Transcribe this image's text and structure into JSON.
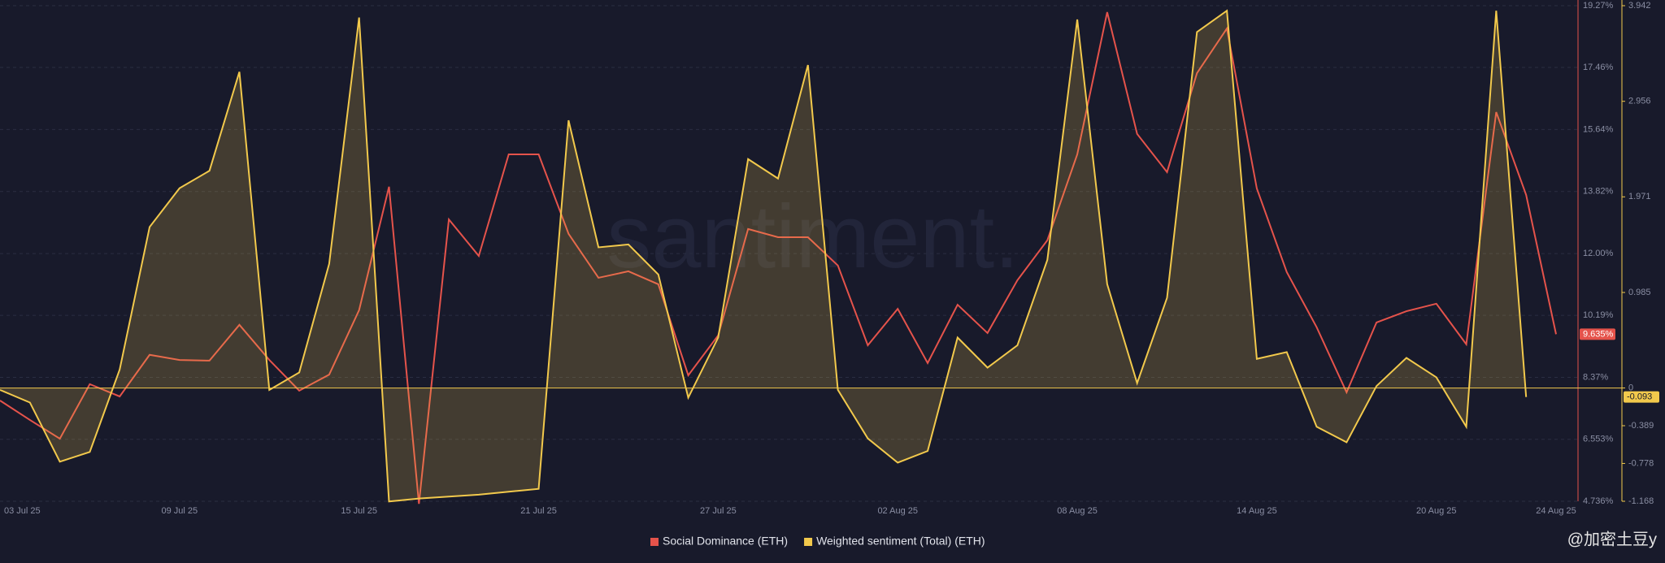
{
  "chart_data": {
    "type": "line",
    "watermark": "santiment.",
    "source_label": "@加密土豆y",
    "categories": [
      "03 Jul 25",
      null,
      null,
      null,
      null,
      null,
      "09 Jul 25",
      null,
      null,
      null,
      null,
      null,
      "15 Jul 25",
      null,
      null,
      null,
      null,
      null,
      "21 Jul 25",
      null,
      null,
      null,
      null,
      null,
      "27 Jul 25",
      null,
      null,
      null,
      null,
      null,
      "02 Aug 25",
      null,
      null,
      null,
      null,
      null,
      "08 Aug 25",
      null,
      null,
      null,
      null,
      null,
      "14 Aug 25",
      null,
      null,
      null,
      null,
      null,
      "20 Aug 25",
      null,
      null,
      null,
      "24 Aug 25"
    ],
    "series": [
      {
        "name": "Social Dominance (ETH)",
        "color": "#e5534b",
        "axis": "y",
        "values": [
          7.69,
          7.12,
          6.57,
          8.17,
          7.81,
          9.03,
          8.88,
          8.86,
          9.91,
          8.88,
          7.98,
          8.45,
          10.34,
          13.96,
          4.66,
          13.0,
          11.93,
          14.91,
          14.91,
          12.58,
          11.29,
          11.48,
          11.1,
          8.43,
          9.6,
          12.72,
          12.48,
          12.48,
          11.65,
          9.31,
          10.38,
          8.79,
          10.5,
          9.67,
          11.22,
          12.39,
          14.91,
          19.08,
          15.51,
          14.39,
          17.29,
          18.6,
          13.91,
          11.46,
          9.84,
          7.93,
          9.98,
          10.31,
          10.53,
          9.34,
          16.15,
          13.72,
          9.635
        ],
        "last_label": "9.635%"
      },
      {
        "name": "Weighted sentiment (Total) (ETH)",
        "color": "#f2c94c",
        "axis": "y2",
        "area": true,
        "values": [
          -0.02,
          -0.15,
          -0.76,
          -0.66,
          0.19,
          1.66,
          2.06,
          2.24,
          3.26,
          -0.02,
          0.16,
          1.28,
          3.82,
          -1.17,
          -1.14,
          -1.12,
          -1.1,
          -1.07,
          -1.04,
          2.76,
          1.45,
          1.48,
          1.17,
          -0.1,
          0.52,
          2.36,
          2.16,
          3.33,
          -0.02,
          -0.52,
          -0.77,
          -0.65,
          0.52,
          0.21,
          0.44,
          1.32,
          3.8,
          1.07,
          0.05,
          0.93,
          3.67,
          3.89,
          0.3,
          0.37,
          -0.4,
          -0.56,
          0.02,
          0.31,
          0.11,
          -0.4,
          3.89,
          -0.093,
          null
        ],
        "last_label": "-0.093"
      }
    ],
    "ylim": [
      4.736,
      19.27
    ],
    "yticks": [
      {
        "value": 19.27,
        "label": "19.27%"
      },
      {
        "value": 17.46,
        "label": "17.46%"
      },
      {
        "value": 15.64,
        "label": "15.64%"
      },
      {
        "value": 13.82,
        "label": "13.82%"
      },
      {
        "value": 12.0,
        "label": "12.00%"
      },
      {
        "value": 10.19,
        "label": "10.19%"
      },
      {
        "value": 8.37,
        "label": "8.37%"
      },
      {
        "value": 6.553,
        "label": "6.553%"
      },
      {
        "value": 4.736,
        "label": "4.736%"
      }
    ],
    "y2lim": [
      -1.168,
      3.942
    ],
    "y2ticks": [
      3.942,
      2.956,
      1.971,
      0.985,
      0,
      -0.389,
      -0.778,
      -1.168
    ],
    "grid": true,
    "legend": "bottom"
  }
}
